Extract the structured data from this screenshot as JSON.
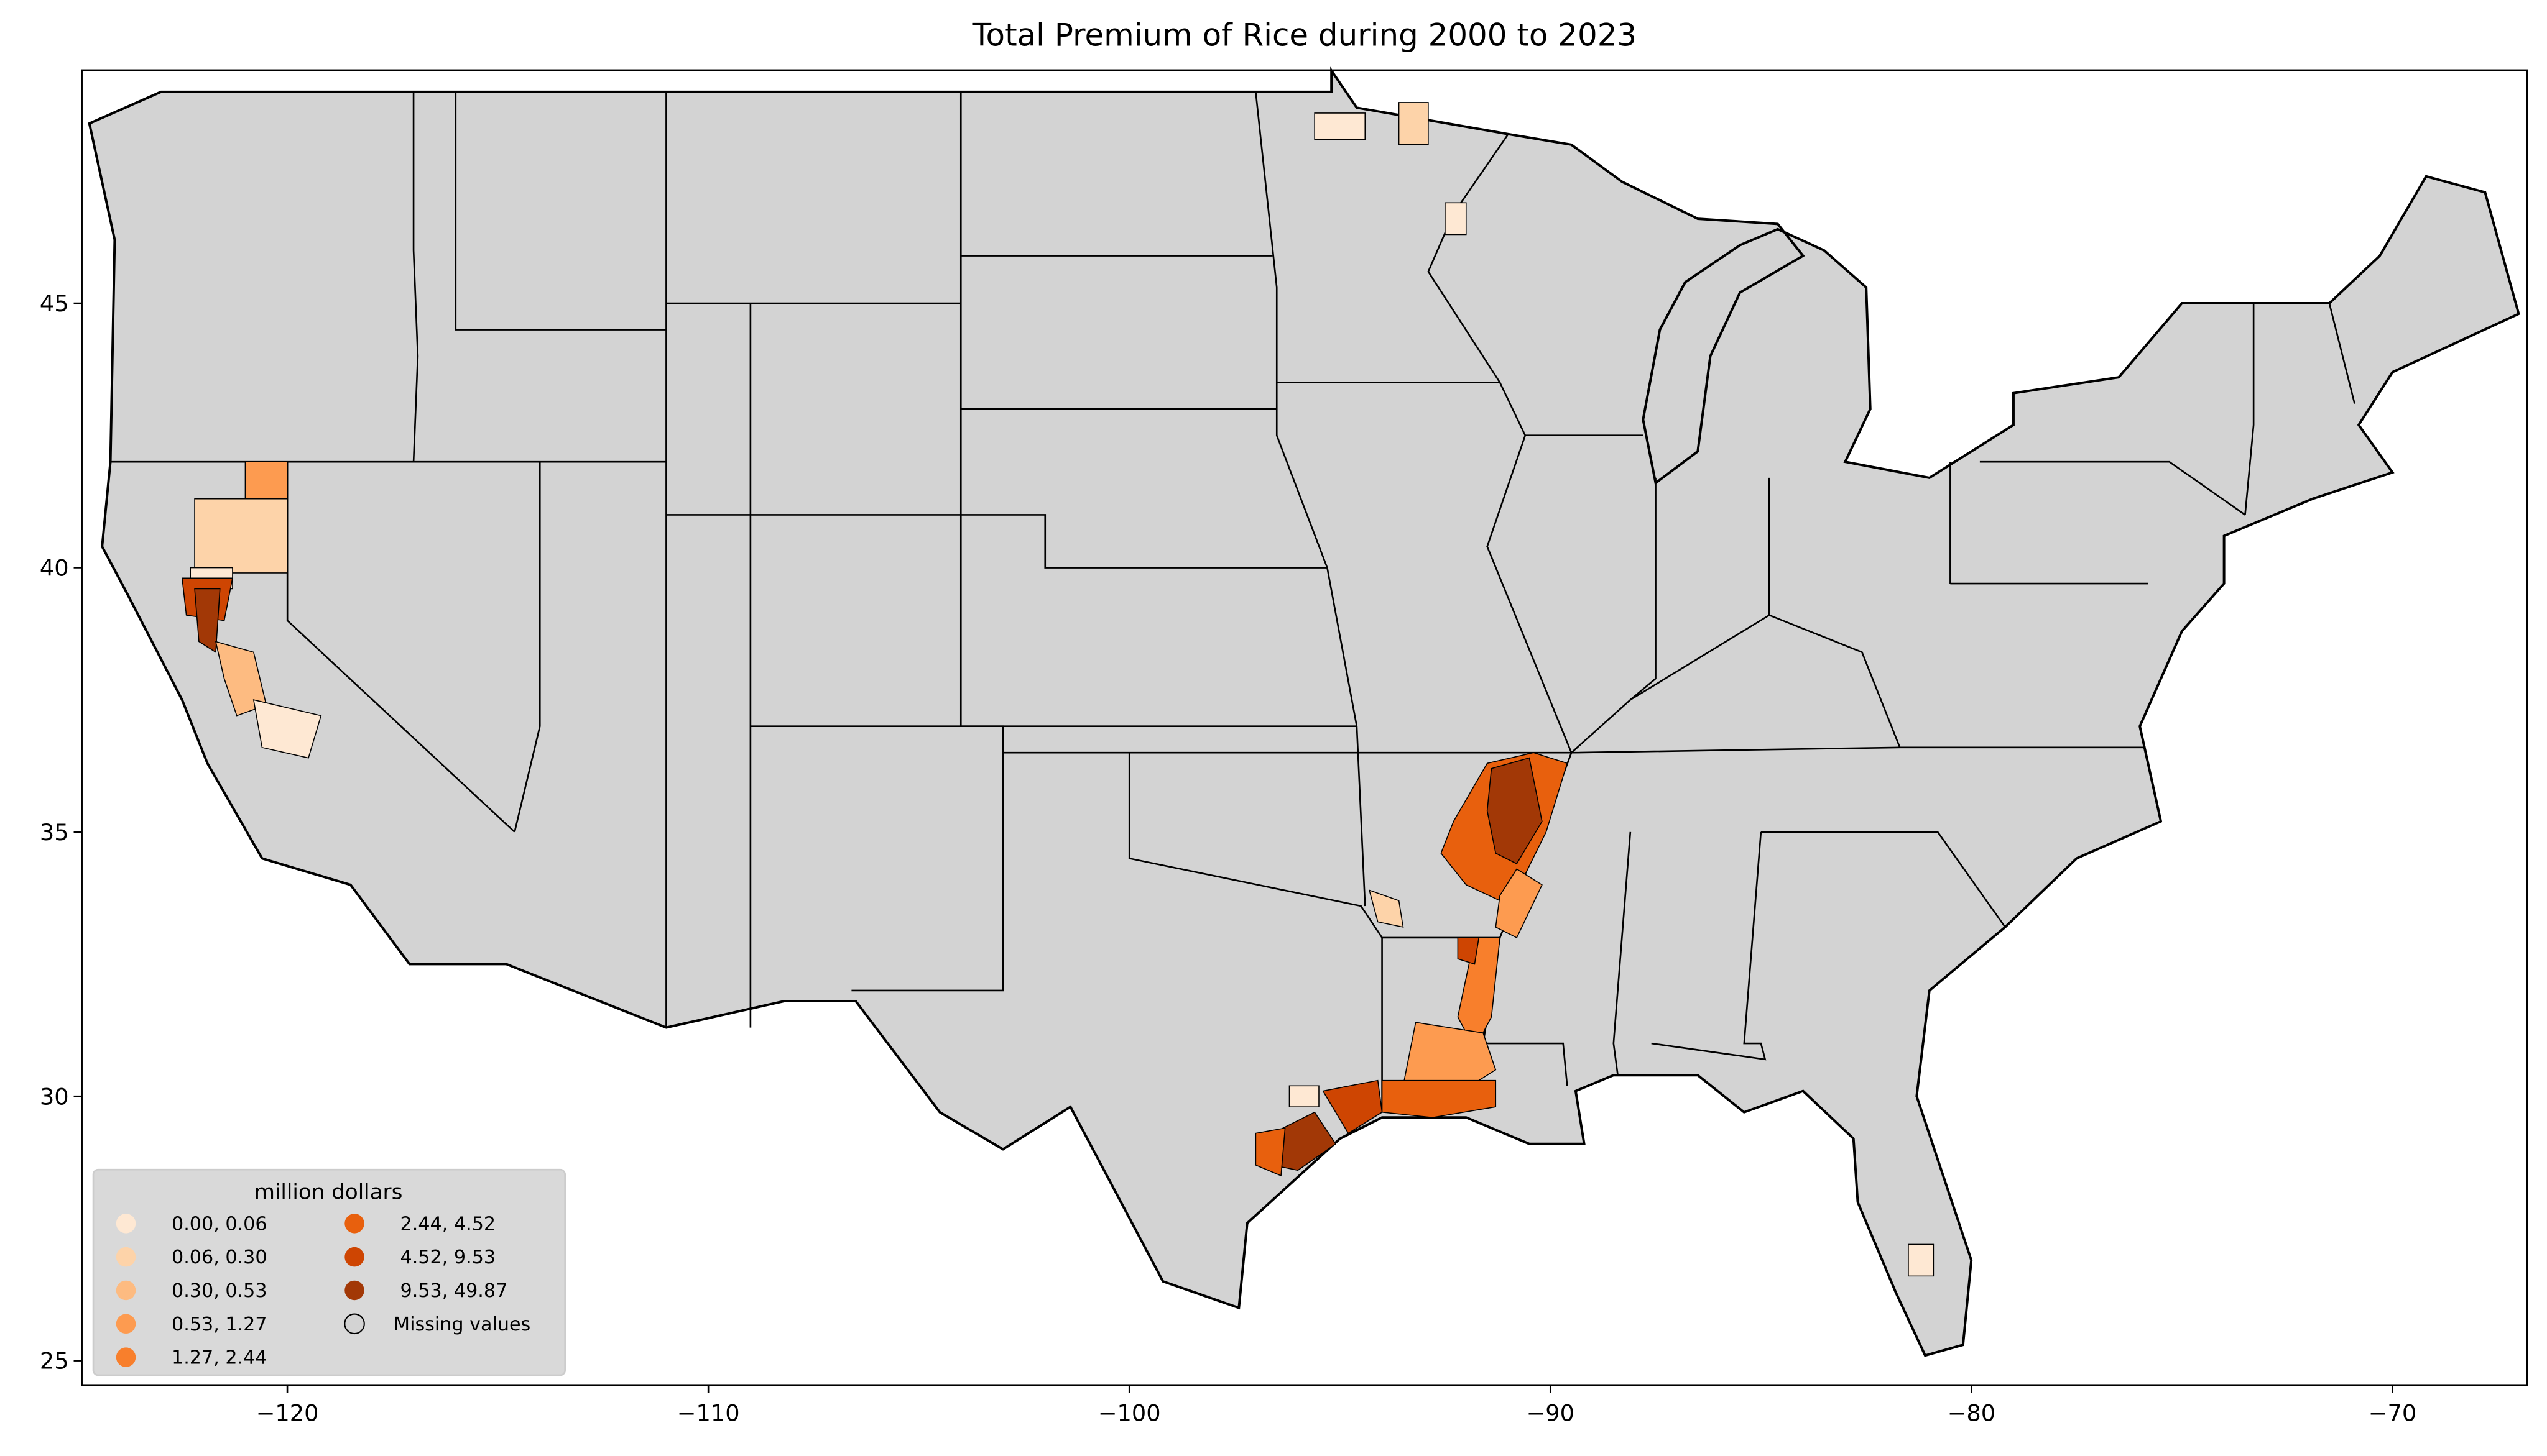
{
  "chart_data": {
    "type": "choropleth",
    "title": "Total  Premium of Rice during 2000 to 2023",
    "xlim": [
      -124.88,
      -66.8
    ],
    "ylim": [
      24.54,
      49.41
    ],
    "xticks": [
      {
        "value": -120,
        "label": "−120"
      },
      {
        "value": -110,
        "label": "−110"
      },
      {
        "value": -100,
        "label": "−100"
      },
      {
        "value": -90,
        "label": "−90"
      },
      {
        "value": -80,
        "label": "−80"
      },
      {
        "value": -70,
        "label": "−70"
      }
    ],
    "yticks": [
      25,
      30,
      35,
      40,
      45
    ],
    "legend": {
      "title": "million dollars",
      "corner": "lower left",
      "items": [
        {
          "label": "0.00,  0.06",
          "color": "#fee8d3"
        },
        {
          "label": "0.06,  0.30",
          "color": "#fdd3a9"
        },
        {
          "label": "0.30,  0.53",
          "color": "#fdbb81"
        },
        {
          "label": "0.53,  1.27",
          "color": "#fd9b50"
        },
        {
          "label": "1.27,  2.44",
          "color": "#f87f2c"
        },
        {
          "label": "2.44,  4.52",
          "color": "#e8600d"
        },
        {
          "label": "4.52,  9.53",
          "color": "#ce4502"
        },
        {
          "label": "9.53, 49.87",
          "color": "#a23806"
        },
        {
          "label": "Missing values",
          "color": "#d3d3d3"
        }
      ]
    }
  }
}
